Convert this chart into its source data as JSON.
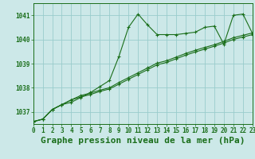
{
  "title": "Graphe pression niveau de la mer (hPa)",
  "background_color": "#cce8e8",
  "grid_color": "#99cccc",
  "line_color": "#1a6e1a",
  "x_ticks": [
    0,
    1,
    2,
    3,
    4,
    5,
    6,
    7,
    8,
    9,
    10,
    11,
    12,
    13,
    14,
    15,
    16,
    17,
    18,
    19,
    20,
    21,
    22,
    23
  ],
  "y_ticks": [
    1037,
    1038,
    1039,
    1040,
    1041
  ],
  "ylim": [
    1036.5,
    1041.5
  ],
  "xlim": [
    0,
    23
  ],
  "series1": [
    1036.6,
    1036.7,
    1037.1,
    1037.3,
    1037.4,
    1037.6,
    1037.8,
    1038.05,
    1038.3,
    1039.3,
    1040.5,
    1041.05,
    1040.6,
    1040.2,
    1040.2,
    1040.2,
    1040.25,
    1040.3,
    1040.5,
    1040.55,
    1039.8,
    1041.0,
    1041.05,
    1040.25
  ],
  "series2": [
    1036.6,
    1036.7,
    1037.1,
    1037.3,
    1037.5,
    1037.62,
    1037.72,
    1037.85,
    1037.95,
    1038.15,
    1038.35,
    1038.55,
    1038.75,
    1038.95,
    1039.05,
    1039.2,
    1039.35,
    1039.48,
    1039.6,
    1039.72,
    1039.85,
    1040.0,
    1040.1,
    1040.2
  ],
  "series3": [
    1036.6,
    1036.7,
    1037.1,
    1037.3,
    1037.5,
    1037.68,
    1037.78,
    1037.9,
    1038.0,
    1038.22,
    1038.42,
    1038.62,
    1038.82,
    1039.02,
    1039.12,
    1039.27,
    1039.42,
    1039.55,
    1039.67,
    1039.78,
    1039.92,
    1040.07,
    1040.17,
    1040.27
  ],
  "title_fontsize": 8,
  "tick_fontsize": 5.5
}
